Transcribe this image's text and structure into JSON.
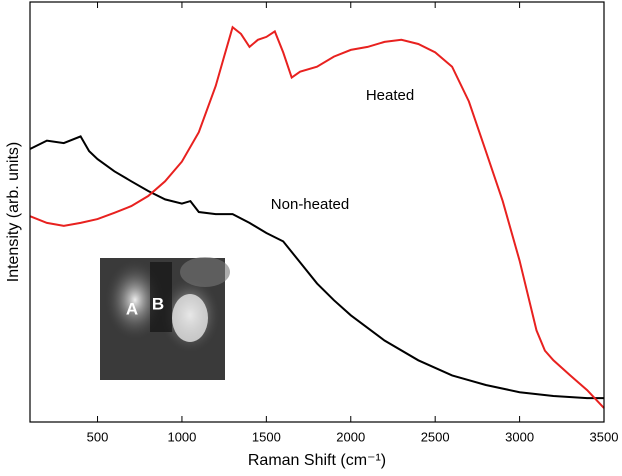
{
  "chart_data": {
    "type": "line",
    "xlabel": "Raman Shift (cm⁻¹)",
    "ylabel": "Intensity (arb. units)",
    "annotations": [
      "Heated",
      "Non-heated"
    ],
    "inset_labels": [
      "A",
      "B"
    ],
    "xlim": [
      100,
      3500
    ],
    "xticks": [
      500,
      1000,
      1500,
      2000,
      2500,
      3000,
      3500
    ],
    "ylim": [
      0,
      100
    ],
    "series": [
      {
        "name": "Non-heated",
        "color": "#000000",
        "x": [
          100,
          200,
          300,
          400,
          450,
          500,
          600,
          700,
          800,
          900,
          1000,
          1050,
          1100,
          1200,
          1300,
          1400,
          1500,
          1600,
          1700,
          1800,
          1900,
          2000,
          2200,
          2400,
          2600,
          2800,
          3000,
          3200,
          3400,
          3500
        ],
        "values": [
          65,
          67,
          66.4,
          68,
          64.5,
          62.6,
          59.7,
          57.3,
          55,
          53,
          52,
          52.6,
          50,
          49.5,
          49.5,
          47.4,
          45,
          43,
          38,
          33,
          29,
          25.4,
          19.4,
          14.7,
          11.1,
          8.8,
          7.1,
          6.2,
          5.7,
          5.7
        ]
      },
      {
        "name": "Heated",
        "color": "#e8211f",
        "x": [
          100,
          200,
          300,
          400,
          500,
          600,
          700,
          800,
          900,
          1000,
          1100,
          1200,
          1250,
          1300,
          1350,
          1400,
          1450,
          1500,
          1550,
          1600,
          1650,
          1700,
          1800,
          1900,
          2000,
          2100,
          2200,
          2300,
          2400,
          2500,
          2600,
          2700,
          2800,
          2900,
          3000,
          3100,
          3150,
          3200,
          3300,
          3400,
          3500
        ],
        "values": [
          49,
          47.4,
          46.7,
          47.4,
          48.3,
          49.8,
          51.4,
          53.8,
          57.3,
          62,
          69,
          80,
          87,
          94,
          92.4,
          89.3,
          91,
          91.7,
          93,
          88,
          82,
          83.4,
          84.6,
          87,
          88.6,
          89.3,
          90.5,
          91,
          90,
          88,
          84.6,
          76.3,
          64.5,
          52.6,
          38.4,
          21.8,
          17,
          14.7,
          11.1,
          7.6,
          3.3
        ]
      }
    ]
  }
}
